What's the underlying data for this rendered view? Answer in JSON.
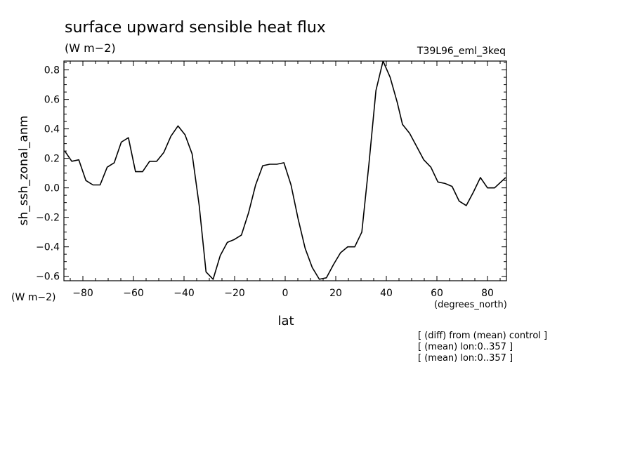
{
  "chart_data": {
    "type": "line",
    "title": "surface upward sensible heat flux",
    "subtitle_units": "(W m−2)",
    "run_label": "T39L96_eml_3keq",
    "ylabel": "sh_ssh_zonal_anm",
    "yunits_corner": "(W m−2)",
    "xlabel": "lat",
    "xunits": "(degrees_north)",
    "notes": [
      "[ (diff) from (mean) control ]",
      "[ (mean) lon:0..357 ]",
      "[ (mean) lon:0..357 ]"
    ],
    "xlim": [
      -87.5,
      87.5
    ],
    "ylim": [
      -0.63,
      0.86
    ],
    "x_ticks": [
      -80,
      -60,
      -40,
      -20,
      0,
      20,
      40,
      60,
      80
    ],
    "x_tick_labels": [
      "−80",
      "−60",
      "−40",
      "−20",
      "0",
      "20",
      "40",
      "60",
      "80"
    ],
    "y_ticks": [
      -0.6,
      -0.4,
      -0.2,
      0.0,
      0.2,
      0.4,
      0.6,
      0.8
    ],
    "y_tick_labels": [
      "−0.6",
      "−0.4",
      "−0.2",
      "0.0",
      "0.2",
      "0.4",
      "0.6",
      "0.8"
    ],
    "series": [
      {
        "x": [
          -87.2,
          -84.4,
          -81.6,
          -78.8,
          -76.0,
          -73.2,
          -70.4,
          -67.6,
          -64.8,
          -62.0,
          -59.2,
          -56.4,
          -53.6,
          -50.8,
          -48.0,
          -45.2,
          -42.4,
          -39.6,
          -36.8,
          -34.0,
          -31.3,
          -28.5,
          -25.7,
          -22.9,
          -20.1,
          -17.3,
          -14.5,
          -11.7,
          -8.9,
          -6.1,
          -3.3,
          -0.5,
          2.3,
          5.1,
          7.9,
          10.7,
          13.5,
          16.3,
          19.1,
          21.9,
          24.7,
          27.5,
          30.3,
          33.1,
          35.9,
          38.7,
          41.5,
          44.3,
          46.4,
          49.2,
          52.0,
          54.8,
          57.6,
          60.4,
          63.2,
          66.0,
          68.8,
          71.6,
          74.4,
          77.2,
          80.0,
          82.8,
          87.2
        ],
        "y": [
          0.25,
          0.18,
          0.19,
          0.05,
          0.02,
          0.02,
          0.14,
          0.17,
          0.31,
          0.34,
          0.11,
          0.11,
          0.18,
          0.18,
          0.24,
          0.35,
          0.42,
          0.36,
          0.23,
          -0.12,
          -0.57,
          -0.62,
          -0.46,
          -0.37,
          -0.35,
          -0.32,
          -0.17,
          0.02,
          0.15,
          0.16,
          0.16,
          0.17,
          0.02,
          -0.21,
          -0.41,
          -0.54,
          -0.62,
          -0.61,
          -0.52,
          -0.44,
          -0.4,
          -0.4,
          -0.3,
          0.16,
          0.66,
          0.86,
          0.75,
          0.58,
          0.43,
          0.37,
          0.28,
          0.19,
          0.14,
          0.04,
          0.03,
          0.01,
          -0.09,
          -0.12,
          -0.03,
          0.07,
          0.0,
          0.0,
          0.07
        ]
      }
    ],
    "grid": false,
    "line_color": "#000000"
  }
}
